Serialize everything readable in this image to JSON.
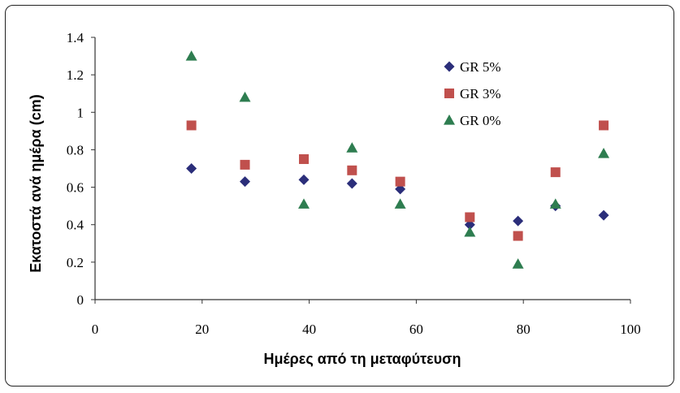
{
  "chart_data": {
    "type": "scatter",
    "title": "",
    "xlabel": "Ημέρες από τη μεταφύτευση",
    "ylabel": "Εκατοστά ανά ημέρα (cm)",
    "xlim": [
      0,
      100
    ],
    "ylim": [
      0,
      1.4
    ],
    "x_ticks": [
      "0",
      "20",
      "40",
      "60",
      "80",
      "100"
    ],
    "y_ticks": [
      "0",
      "0.2",
      "0.4",
      "0.6",
      "0.8",
      "1",
      "1.2",
      "1.4"
    ],
    "grid": false,
    "legend_position": "top-right",
    "x": [
      18,
      28,
      39,
      48,
      57,
      70,
      79,
      86,
      95
    ],
    "series": [
      {
        "name": "GR 5%",
        "marker": "diamond",
        "color": "#2b2e7a",
        "values": [
          0.7,
          0.63,
          0.64,
          0.62,
          0.59,
          0.4,
          0.42,
          0.5,
          0.45
        ]
      },
      {
        "name": "GR 3%",
        "marker": "square",
        "color": "#c0504d",
        "values": [
          0.93,
          0.72,
          0.75,
          0.69,
          0.63,
          0.44,
          0.34,
          0.68,
          0.93
        ]
      },
      {
        "name": "GR 0%",
        "marker": "triangle",
        "color": "#2e7d50",
        "values": [
          1.3,
          1.08,
          0.51,
          0.81,
          0.51,
          0.36,
          0.19,
          0.51,
          0.78
        ]
      }
    ]
  }
}
